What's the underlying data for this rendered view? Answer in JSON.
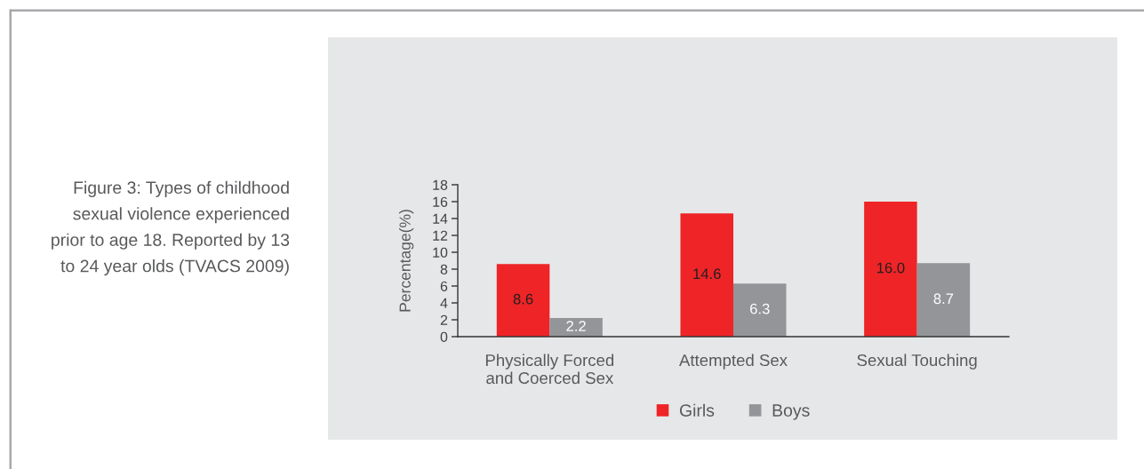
{
  "chart_data": {
    "type": "bar",
    "title": "Figure 3: Types of childhood\nsexual violence experienced\nprior to age 18. Reported by 13\nto 24 year olds (TVACS 2009)",
    "ylabel": "Percentage(%)",
    "categories": [
      "Physically Forced\nand Coerced Sex",
      "Attempted Sex",
      "Sexual Touching"
    ],
    "series": [
      {
        "name": "Girls",
        "color": "#ee2427",
        "values": [
          8.6,
          14.6,
          16.0
        ],
        "value_labels": [
          "8.6",
          "14.6",
          "16.0"
        ]
      },
      {
        "name": "Boys",
        "color": "#939598",
        "values": [
          2.2,
          6.3,
          8.7
        ],
        "value_labels": [
          "2.2",
          "6.3",
          "8.7"
        ]
      }
    ],
    "ylim": [
      0,
      18
    ],
    "yticks": [
      0,
      2,
      4,
      6,
      8,
      10,
      12,
      14,
      16,
      18
    ],
    "legend": "bottom",
    "grid": false
  }
}
